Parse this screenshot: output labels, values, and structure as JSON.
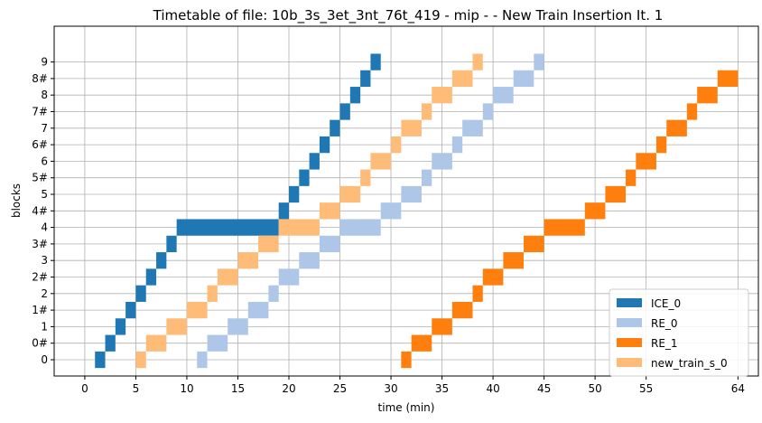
{
  "chart_data": {
    "type": "bar",
    "subtype": "timetable",
    "title": "Timetable of file: 10b_3s_3et_3nt_76t_419 - mip -  - New Train Insertion It. 1",
    "xlabel": "time (min)",
    "ylabel": "blocks",
    "xlim": [
      -3,
      66
    ],
    "x_ticks": [
      0,
      5,
      10,
      15,
      20,
      25,
      30,
      35,
      40,
      45,
      50,
      55,
      64
    ],
    "y_ticks": [
      "0",
      "0#",
      "1",
      "1#",
      "2",
      "2#",
      "3",
      "3#",
      "4",
      "4#",
      "5",
      "5#",
      "6",
      "6#",
      "7",
      "7#",
      "8",
      "8#",
      "9"
    ],
    "grid": true,
    "legend_position": "bottom-right",
    "series": [
      {
        "name": "ICE_0",
        "color": "#1f77b4",
        "segments": [
          {
            "block": "0",
            "start": 1.0,
            "end": 2.0
          },
          {
            "block": "0#",
            "start": 2.0,
            "end": 3.0
          },
          {
            "block": "1",
            "start": 3.0,
            "end": 4.0
          },
          {
            "block": "1#",
            "start": 4.0,
            "end": 5.0
          },
          {
            "block": "2",
            "start": 5.0,
            "end": 6.0
          },
          {
            "block": "2#",
            "start": 6.0,
            "end": 7.0
          },
          {
            "block": "3",
            "start": 7.0,
            "end": 8.0
          },
          {
            "block": "3#",
            "start": 8.0,
            "end": 9.0
          },
          {
            "block": "4",
            "start": 9.0,
            "end": 19.0
          },
          {
            "block": "4#",
            "start": 19.0,
            "end": 20.0
          },
          {
            "block": "5",
            "start": 20.0,
            "end": 21.0
          },
          {
            "block": "5#",
            "start": 21.0,
            "end": 22.0
          },
          {
            "block": "6",
            "start": 22.0,
            "end": 23.0
          },
          {
            "block": "6#",
            "start": 23.0,
            "end": 24.0
          },
          {
            "block": "7",
            "start": 24.0,
            "end": 25.0
          },
          {
            "block": "7#",
            "start": 25.0,
            "end": 26.0
          },
          {
            "block": "8",
            "start": 26.0,
            "end": 27.0
          },
          {
            "block": "8#",
            "start": 27.0,
            "end": 28.0
          },
          {
            "block": "9",
            "start": 28.0,
            "end": 29.0
          }
        ]
      },
      {
        "name": "RE_0",
        "color": "#aec7e8",
        "segments": [
          {
            "block": "0",
            "start": 11.0,
            "end": 12.0
          },
          {
            "block": "0#",
            "start": 12.0,
            "end": 14.0
          },
          {
            "block": "1",
            "start": 14.0,
            "end": 16.0
          },
          {
            "block": "1#",
            "start": 16.0,
            "end": 18.0
          },
          {
            "block": "2",
            "start": 18.0,
            "end": 19.0
          },
          {
            "block": "2#",
            "start": 19.0,
            "end": 21.0
          },
          {
            "block": "3",
            "start": 21.0,
            "end": 23.0
          },
          {
            "block": "3#",
            "start": 23.0,
            "end": 25.0
          },
          {
            "block": "4",
            "start": 25.0,
            "end": 29.0
          },
          {
            "block": "4#",
            "start": 29.0,
            "end": 31.0
          },
          {
            "block": "5",
            "start": 31.0,
            "end": 33.0
          },
          {
            "block": "5#",
            "start": 33.0,
            "end": 34.0
          },
          {
            "block": "6",
            "start": 34.0,
            "end": 36.0
          },
          {
            "block": "6#",
            "start": 36.0,
            "end": 37.0
          },
          {
            "block": "7",
            "start": 37.0,
            "end": 39.0
          },
          {
            "block": "7#",
            "start": 39.0,
            "end": 40.0
          },
          {
            "block": "8",
            "start": 40.0,
            "end": 42.0
          },
          {
            "block": "8#",
            "start": 42.0,
            "end": 44.0
          },
          {
            "block": "9",
            "start": 44.0,
            "end": 45.0
          }
        ]
      },
      {
        "name": "RE_1",
        "color": "#ff7f0e",
        "segments": [
          {
            "block": "0",
            "start": 31.0,
            "end": 32.0
          },
          {
            "block": "0#",
            "start": 32.0,
            "end": 34.0
          },
          {
            "block": "1",
            "start": 34.0,
            "end": 36.0
          },
          {
            "block": "1#",
            "start": 36.0,
            "end": 38.0
          },
          {
            "block": "2",
            "start": 38.0,
            "end": 39.0
          },
          {
            "block": "2#",
            "start": 39.0,
            "end": 41.0
          },
          {
            "block": "3",
            "start": 41.0,
            "end": 43.0
          },
          {
            "block": "3#",
            "start": 43.0,
            "end": 45.0
          },
          {
            "block": "4",
            "start": 45.0,
            "end": 49.0
          },
          {
            "block": "4#",
            "start": 49.0,
            "end": 51.0
          },
          {
            "block": "5",
            "start": 51.0,
            "end": 53.0
          },
          {
            "block": "5#",
            "start": 53.0,
            "end": 54.0
          },
          {
            "block": "6",
            "start": 54.0,
            "end": 56.0
          },
          {
            "block": "6#",
            "start": 56.0,
            "end": 57.0
          },
          {
            "block": "7",
            "start": 57.0,
            "end": 59.0
          },
          {
            "block": "7#",
            "start": 59.0,
            "end": 60.0
          },
          {
            "block": "8",
            "start": 60.0,
            "end": 62.0
          },
          {
            "block": "8#",
            "start": 62.0,
            "end": 64.0
          }
        ]
      },
      {
        "name": "new_train_s_0",
        "color": "#ffbb78",
        "segments": [
          {
            "block": "0",
            "start": 5.0,
            "end": 6.0
          },
          {
            "block": "0#",
            "start": 6.0,
            "end": 8.0
          },
          {
            "block": "1",
            "start": 8.0,
            "end": 10.0
          },
          {
            "block": "1#",
            "start": 10.0,
            "end": 12.0
          },
          {
            "block": "2",
            "start": 12.0,
            "end": 13.0
          },
          {
            "block": "2#",
            "start": 13.0,
            "end": 15.0
          },
          {
            "block": "3",
            "start": 15.0,
            "end": 17.0
          },
          {
            "block": "3#",
            "start": 17.0,
            "end": 19.0
          },
          {
            "block": "4",
            "start": 19.0,
            "end": 23.0
          },
          {
            "block": "4#",
            "start": 23.0,
            "end": 25.0
          },
          {
            "block": "5",
            "start": 25.0,
            "end": 27.0
          },
          {
            "block": "5#",
            "start": 27.0,
            "end": 28.0
          },
          {
            "block": "6",
            "start": 28.0,
            "end": 30.0
          },
          {
            "block": "6#",
            "start": 30.0,
            "end": 31.0
          },
          {
            "block": "7",
            "start": 31.0,
            "end": 33.0
          },
          {
            "block": "7#",
            "start": 33.0,
            "end": 34.0
          },
          {
            "block": "8",
            "start": 34.0,
            "end": 36.0
          },
          {
            "block": "8#",
            "start": 36.0,
            "end": 38.0
          },
          {
            "block": "9",
            "start": 38.0,
            "end": 39.0
          }
        ]
      }
    ]
  }
}
